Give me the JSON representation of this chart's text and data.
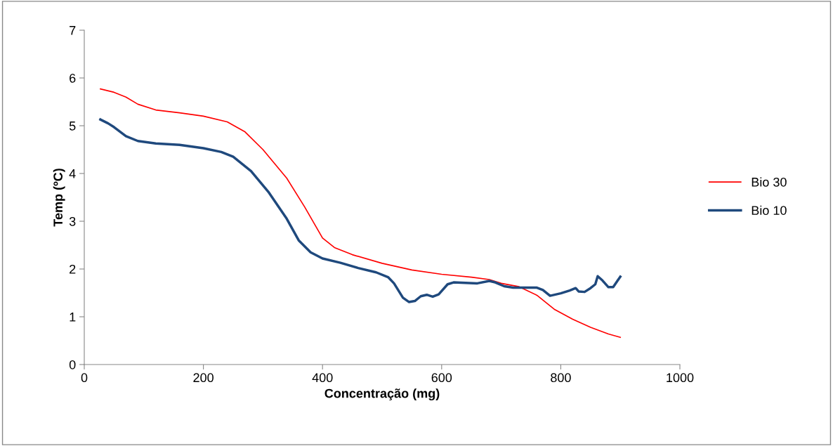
{
  "chart_data": {
    "type": "line",
    "xlabel": "Concentração (mg)",
    "ylabel": "Temp (ºC)",
    "xlim": [
      0,
      1000
    ],
    "xticks": [
      0,
      200,
      400,
      600,
      800,
      1000
    ],
    "ylim": [
      0,
      7
    ],
    "yticks": [
      0,
      1,
      2,
      3,
      4,
      5,
      6,
      7
    ],
    "grid": false,
    "legend": "right",
    "marker": "none",
    "line_style": "solid",
    "series": [
      {
        "name": "Bio 30",
        "color": "#ff0000",
        "x": [
          27,
          50,
          70,
          90,
          120,
          160,
          200,
          240,
          270,
          300,
          340,
          370,
          400,
          420,
          450,
          500,
          550,
          600,
          650,
          680,
          700,
          730,
          760,
          790,
          820,
          850,
          880,
          900
        ],
        "values": [
          5.77,
          5.7,
          5.6,
          5.45,
          5.33,
          5.27,
          5.2,
          5.08,
          4.87,
          4.5,
          3.9,
          3.3,
          2.65,
          2.45,
          2.3,
          2.12,
          1.98,
          1.89,
          1.83,
          1.78,
          1.7,
          1.63,
          1.45,
          1.15,
          0.95,
          0.78,
          0.64,
          0.57
        ]
      },
      {
        "name": "Bio 10",
        "color": "#1f497d",
        "x": [
          27,
          40,
          50,
          70,
          90,
          120,
          160,
          200,
          230,
          250,
          280,
          310,
          340,
          360,
          380,
          400,
          430,
          460,
          490,
          510,
          520,
          535,
          545,
          555,
          565,
          575,
          585,
          595,
          610,
          620,
          640,
          660,
          680,
          690,
          705,
          720,
          740,
          760,
          770,
          782,
          800,
          815,
          825,
          830,
          840,
          850,
          858,
          862,
          870,
          880,
          888,
          895,
          900
        ],
        "values": [
          5.13,
          5.05,
          4.97,
          4.78,
          4.68,
          4.63,
          4.6,
          4.53,
          4.45,
          4.35,
          4.05,
          3.6,
          3.05,
          2.6,
          2.35,
          2.22,
          2.13,
          2.02,
          1.93,
          1.83,
          1.7,
          1.4,
          1.31,
          1.33,
          1.43,
          1.46,
          1.42,
          1.47,
          1.68,
          1.72,
          1.71,
          1.7,
          1.75,
          1.72,
          1.64,
          1.61,
          1.61,
          1.61,
          1.56,
          1.44,
          1.49,
          1.55,
          1.6,
          1.53,
          1.52,
          1.6,
          1.68,
          1.85,
          1.76,
          1.62,
          1.62,
          1.75,
          1.84
        ]
      }
    ]
  }
}
